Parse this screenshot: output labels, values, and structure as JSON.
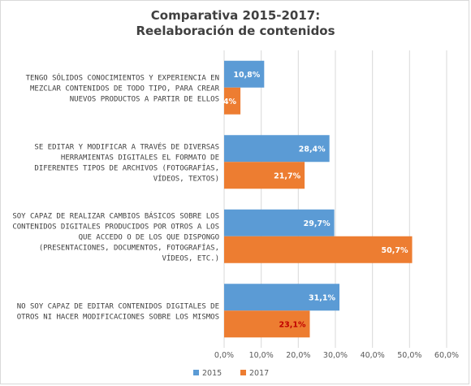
{
  "chart_data": {
    "type": "bar",
    "orientation": "horizontal",
    "title": [
      "Comparativa 2015-2017:",
      "Reelaboración de contenidos"
    ],
    "categories": [
      [
        "TENGO SÓLIDOS CONOCIMIENTOS Y EXPERIENCIA EN",
        "MEZCLAR CONTENIDOS DE TODO TIPO, PARA CREAR",
        "NUEVOS PRODUCTOS A PARTIR DE ELLOS"
      ],
      [
        "SE EDITAR Y MODIFICAR A TRAVÉS DE DIVERSAS",
        "HERRAMIENTAS DIGITALES EL FORMATO DE",
        "DIFERENTES TIPOS DE ARCHIVOS (FOTOGRAFÍAS,",
        "VÍDEOS, TEXTOS)"
      ],
      [
        "SOY CAPAZ DE REALIZAR CAMBIOS BÁSICOS SOBRE LOS",
        "CONTENIDOS DIGITALES PRODUCIDOS POR OTROS A LOS",
        "QUE ACCEDO O DE LOS QUE DISPONGO",
        "(PRESENTACIONES, DOCUMENTOS, FOTOGRAFÍAS,",
        "VÍDEOS, ETC.)"
      ],
      [
        "NO SOY CAPAZ DE EDITAR CONTENIDOS DIGITALES DE",
        "OTROS NI HACER MODIFICACIONES SOBRE LOS MISMOS"
      ]
    ],
    "series": [
      {
        "name": "2015",
        "color": "#5b9bd5",
        "values": [
          10.8,
          28.4,
          29.7,
          31.1
        ],
        "labels": [
          "10,8%",
          "28,4%",
          "29,7%",
          "31,1%"
        ]
      },
      {
        "name": "2017",
        "color": "#ed7d31",
        "values": [
          4.4,
          21.7,
          50.7,
          23.1
        ],
        "labels": [
          "4,4%",
          "21,7%",
          "50,7%",
          "23,1%"
        ]
      }
    ],
    "label_colors": {
      "default": "#ffffff",
      "highlight": "#c00000"
    },
    "highlight_label": {
      "series": 1,
      "index": 3
    },
    "xlim": [
      0,
      60
    ],
    "xticks": [
      0,
      10,
      20,
      30,
      40,
      50,
      60
    ],
    "xtick_labels": [
      "0,0%",
      "10,0%",
      "20,0%",
      "30,0%",
      "40,0%",
      "50,0%",
      "60,0%"
    ],
    "grid": true,
    "legend_position": "bottom"
  }
}
